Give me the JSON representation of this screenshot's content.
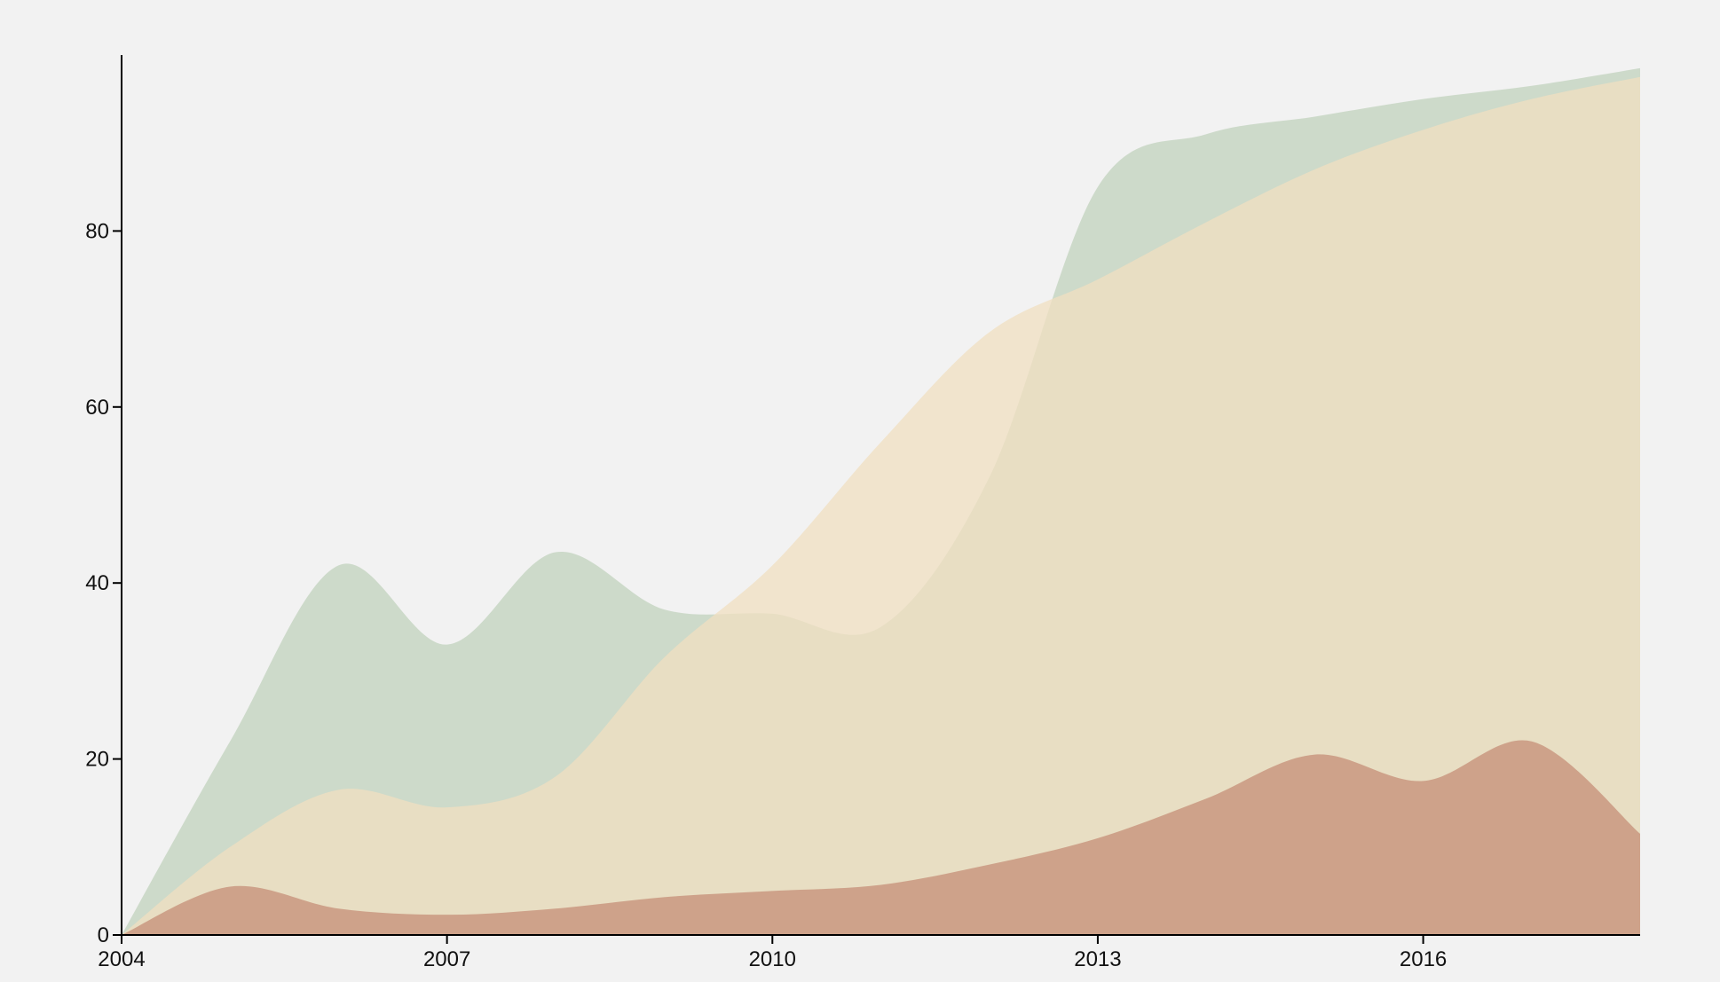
{
  "chart_data": {
    "type": "area",
    "title": "",
    "xlabel": "",
    "ylabel": "",
    "x": [
      2004,
      2005,
      2006,
      2007,
      2008,
      2009,
      2010,
      2011,
      2012,
      2013,
      2014,
      2015,
      2016,
      2017,
      2018
    ],
    "xlim": [
      2004,
      2018
    ],
    "ylim": [
      0,
      100
    ],
    "x_ticks": [
      2004,
      2007,
      2010,
      2013,
      2016
    ],
    "y_ticks": [
      0,
      20,
      40,
      60,
      80
    ],
    "grid": false,
    "legend": "none",
    "stacked": false,
    "series": [
      {
        "color": "#c7d6c3",
        "opacity": 0.85,
        "values": [
          0,
          22,
          42,
          33,
          43.5,
          37,
          36.5,
          35,
          52,
          85,
          91,
          93,
          95,
          96.5,
          98.5
        ]
      },
      {
        "color": "#f0dfc0",
        "opacity": 0.75,
        "values": [
          0,
          10,
          16.5,
          14.5,
          18,
          31.5,
          42,
          56,
          68.5,
          74.5,
          81,
          87,
          91.5,
          95,
          97.5
        ]
      },
      {
        "color": "#c99880",
        "opacity": 0.85,
        "values": [
          0,
          5.5,
          3,
          2.3,
          3,
          4.3,
          5,
          5.7,
          8,
          11,
          15.5,
          20.5,
          17.5,
          22,
          11.5
        ]
      }
    ]
  }
}
